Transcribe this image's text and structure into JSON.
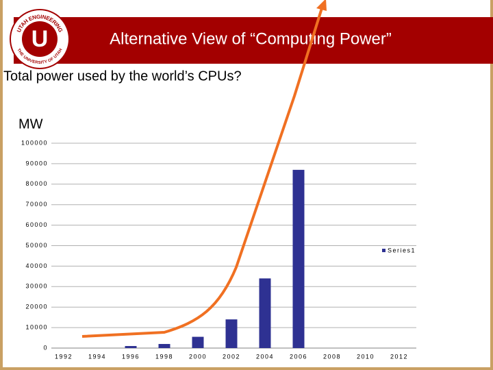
{
  "logo": {
    "letter": "U",
    "top": "UTAH ENGINEERING",
    "bottom": "THE UNIVERSITY OF UTAH"
  },
  "chart_data": {
    "type": "bar",
    "title": "Alternative View of “Computing Power”",
    "subtitle": "Total power used by the world’s CPUs?",
    "y_label": "MW",
    "categories": [
      "1992",
      "1994",
      "1996",
      "1998",
      "2000",
      "2002",
      "2004",
      "2006",
      "2008",
      "2010",
      "2012"
    ],
    "series": [
      {
        "name": "Series1",
        "color": "#2e3192",
        "values": [
          null,
          null,
          1000,
          2000,
          5500,
          14000,
          34000,
          87000,
          null,
          null,
          null
        ]
      }
    ],
    "ylim": [
      0,
      100000
    ],
    "yticks": [
      0,
      10000,
      20000,
      30000,
      40000,
      50000,
      60000,
      70000,
      80000,
      90000,
      100000
    ],
    "grid": true,
    "legend": "right"
  }
}
